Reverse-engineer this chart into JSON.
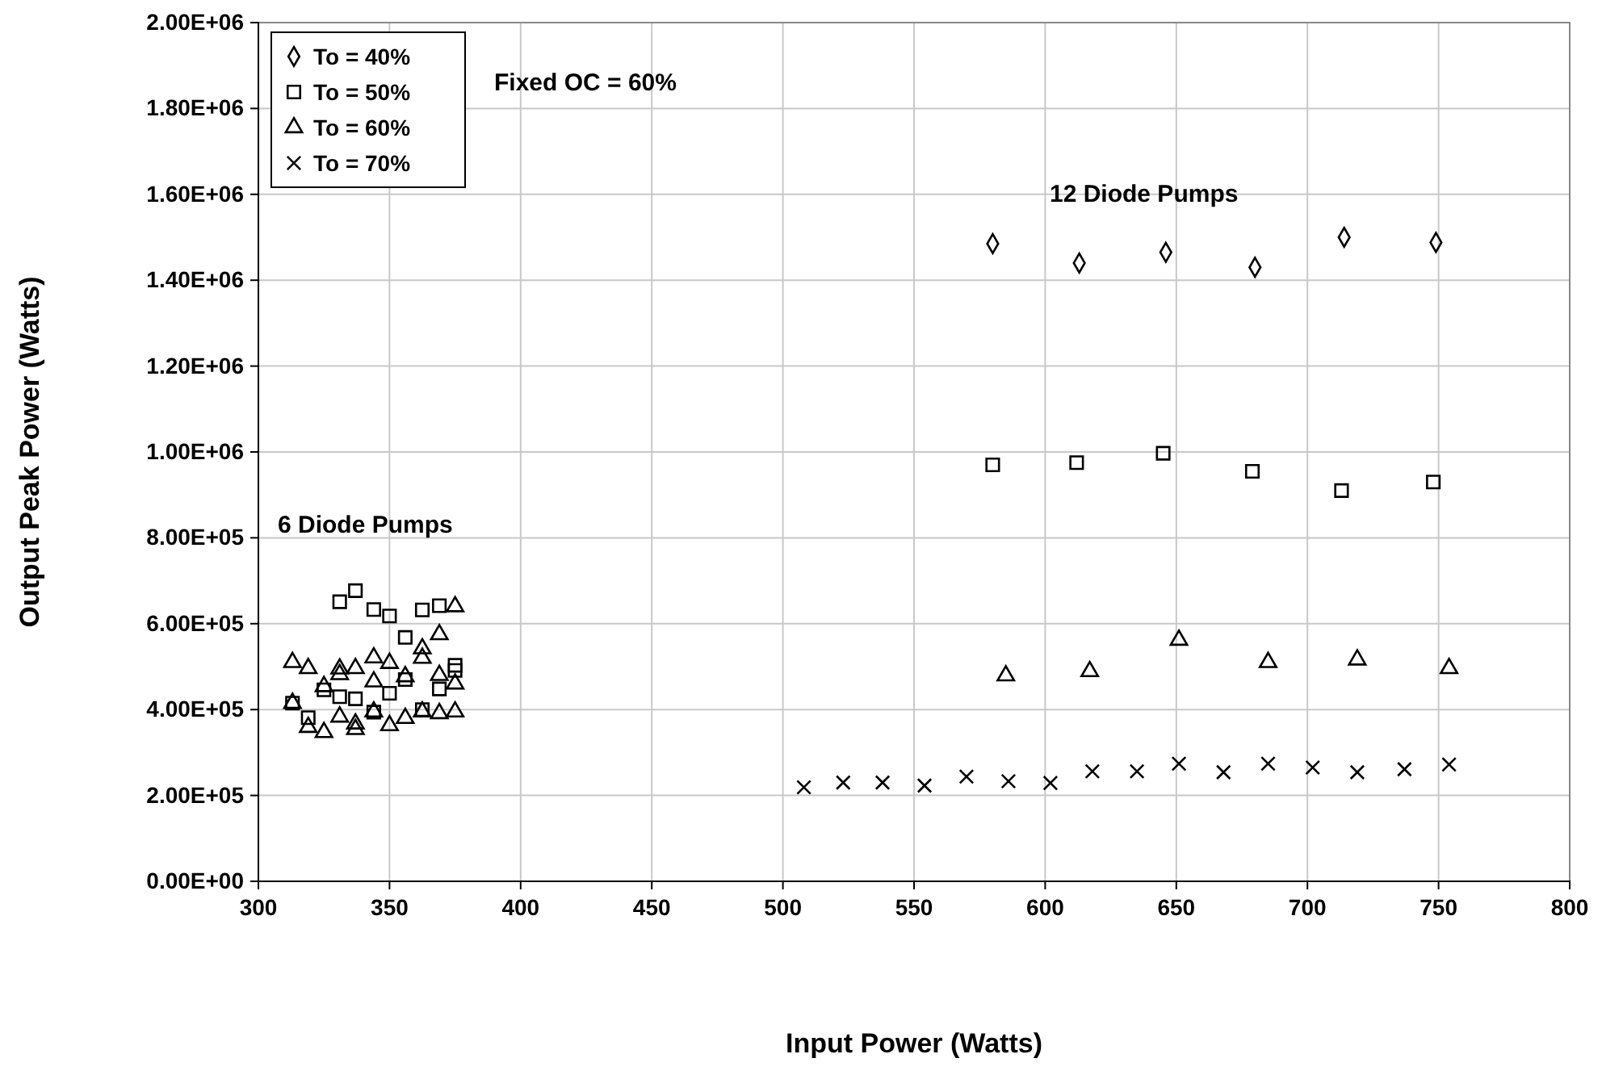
{
  "chart_data": {
    "type": "scatter",
    "xlabel": "Input Power (Watts)",
    "ylabel": "Output Peak Power (Watts)",
    "annotations": [
      "Fixed OC = 60%",
      "12 Diode Pumps",
      "6 Diode Pumps"
    ],
    "xlim": [
      300,
      800
    ],
    "xticks": [
      300,
      350,
      400,
      450,
      500,
      550,
      600,
      650,
      700,
      750,
      800
    ],
    "ylim": [
      0,
      2000000
    ],
    "yticks": [
      {
        "value": 0,
        "label": "0.00E+00"
      },
      {
        "value": 200000,
        "label": "2.00E+05"
      },
      {
        "value": 400000,
        "label": "4.00E+05"
      },
      {
        "value": 600000,
        "label": "6.00E+05"
      },
      {
        "value": 800000,
        "label": "8.00E+05"
      },
      {
        "value": 1000000,
        "label": "1.00E+06"
      },
      {
        "value": 1200000,
        "label": "1.20E+06"
      },
      {
        "value": 1400000,
        "label": "1.40E+06"
      },
      {
        "value": 1600000,
        "label": "1.60E+06"
      },
      {
        "value": 1800000,
        "label": "1.80E+06"
      },
      {
        "value": 2000000,
        "label": "2.00E+06"
      }
    ],
    "grid": true,
    "legend": "top left",
    "series": [
      {
        "name": "To = 40%",
        "color": "#000000",
        "marker": "diamond",
        "x": [
          580,
          613,
          646,
          680,
          714,
          749
        ],
        "values": [
          1485000,
          1440000,
          1465000,
          1430000,
          1500000,
          1488000
        ]
      },
      {
        "name": "To = 50%",
        "color": "#000000",
        "marker": "square",
        "x": [
          331,
          337,
          344,
          350,
          356,
          362.5,
          369,
          375,
          375,
          369,
          362.5,
          356,
          350,
          344,
          337,
          331,
          325,
          319,
          313,
          580,
          612,
          645,
          679,
          713,
          748
        ],
        "values": [
          651000,
          677000,
          633000,
          618000,
          568000,
          632000,
          642000,
          503000,
          491000,
          448000,
          400000,
          470000,
          438000,
          394000,
          425000,
          430000,
          446000,
          381000,
          415000,
          970000,
          975000,
          997000,
          955000,
          910000,
          930000
        ]
      },
      {
        "name": "To = 60%",
        "color": "#000000",
        "marker": "triangle",
        "x": [
          313,
          319,
          325,
          331,
          331,
          337,
          344,
          350,
          356,
          362.5,
          362.5,
          369,
          375,
          344,
          337,
          337,
          331,
          325,
          319,
          313,
          344,
          350,
          356,
          362.5,
          369,
          375,
          375,
          369,
          585,
          617,
          651,
          685,
          719,
          754
        ],
        "values": [
          510000,
          496000,
          454000,
          495000,
          482000,
          496000,
          521000,
          508000,
          477000,
          542000,
          520000,
          575000,
          640000,
          465000,
          367000,
          354000,
          383000,
          347000,
          359000,
          415000,
          395000,
          363000,
          380000,
          395000,
          391000,
          395000,
          460000,
          480000,
          479000,
          489000,
          562000,
          510000,
          516000,
          496000
        ]
      },
      {
        "name": "To = 70%",
        "color": "#000000",
        "marker": "cross",
        "x": [
          508,
          523,
          538,
          554,
          570,
          586,
          602,
          618,
          635,
          651,
          668,
          685,
          702,
          719,
          737,
          754
        ],
        "values": [
          219000,
          230000,
          230000,
          223000,
          244000,
          233000,
          229000,
          256000,
          256000,
          274000,
          254000,
          274000,
          265000,
          254000,
          261000,
          272000
        ]
      }
    ]
  }
}
